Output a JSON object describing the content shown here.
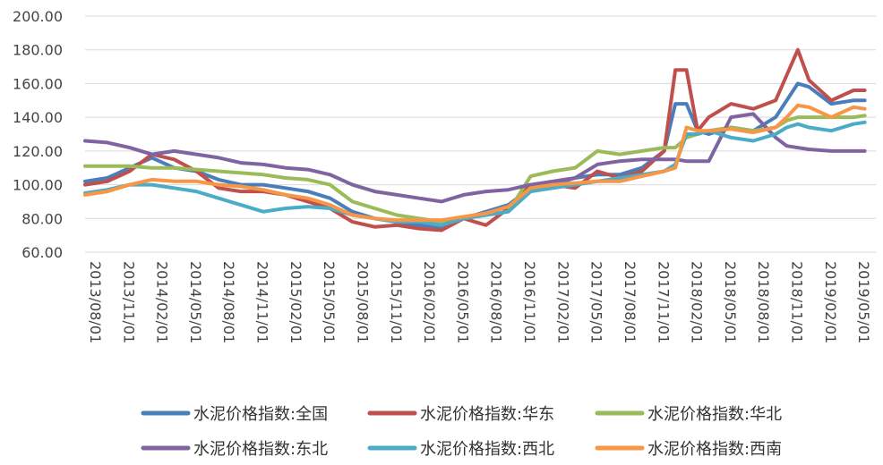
{
  "chart_data": {
    "type": "line",
    "title": "",
    "xlabel": "",
    "ylabel": "",
    "ylim": [
      60,
      200
    ],
    "yticks": [
      "60.00",
      "80.00",
      "100.00",
      "120.00",
      "140.00",
      "160.00",
      "180.00",
      "200.00"
    ],
    "xticks": [
      "2013/08/01",
      "2013/11/01",
      "2014/02/01",
      "2014/05/01",
      "2014/08/01",
      "2014/11/01",
      "2015/02/01",
      "2015/05/01",
      "2015/08/01",
      "2015/11/01",
      "2016/02/01",
      "2016/05/01",
      "2016/08/01",
      "2016/11/01",
      "2017/02/01",
      "2017/05/01",
      "2017/08/01",
      "2017/11/01",
      "2018/02/01",
      "2018/05/01",
      "2018/08/01",
      "2018/11/01",
      "2019/02/01",
      "2019/05/01"
    ],
    "grid": true,
    "legend_position": "bottom",
    "x": [
      "2013/08",
      "2013/10",
      "2013/12",
      "2014/02",
      "2014/04",
      "2014/06",
      "2014/08",
      "2014/10",
      "2014/12",
      "2015/02",
      "2015/04",
      "2015/06",
      "2015/08",
      "2015/10",
      "2015/12",
      "2016/02",
      "2016/04",
      "2016/06",
      "2016/08",
      "2016/10",
      "2016/12",
      "2017/02",
      "2017/04",
      "2017/06",
      "2017/08",
      "2017/10",
      "2017/12",
      "2018/01",
      "2018/02",
      "2018/03",
      "2018/04",
      "2018/06",
      "2018/08",
      "2018/10",
      "2018/11",
      "2018/12",
      "2019/01",
      "2019/03",
      "2019/05",
      "2019/06"
    ],
    "series": [
      {
        "name": "水泥价格指数:全国",
        "color": "#4a7ebb",
        "values": [
          102,
          104,
          110,
          116,
          110,
          108,
          103,
          100,
          100,
          98,
          96,
          92,
          84,
          80,
          78,
          76,
          75,
          80,
          84,
          88,
          98,
          100,
          104,
          106,
          106,
          110,
          120,
          148,
          148,
          132,
          130,
          134,
          132,
          140,
          150,
          160,
          158,
          148,
          150,
          150
        ]
      },
      {
        "name": "水泥价格指数:华东",
        "color": "#c0504d",
        "values": [
          100,
          102,
          108,
          118,
          115,
          108,
          98,
          96,
          96,
          94,
          90,
          86,
          78,
          75,
          76,
          74,
          73,
          80,
          76,
          86,
          100,
          100,
          98,
          108,
          104,
          108,
          120,
          168,
          168,
          132,
          140,
          148,
          145,
          150,
          165,
          180,
          162,
          150,
          156,
          156
        ]
      },
      {
        "name": "水泥价格指数:华北",
        "color": "#9bbb59",
        "values": [
          111,
          111,
          111,
          110,
          110,
          109,
          108,
          107,
          106,
          104,
          103,
          100,
          90,
          86,
          82,
          80,
          78,
          80,
          82,
          84,
          105,
          108,
          110,
          120,
          118,
          120,
          122,
          122,
          128,
          130,
          132,
          134,
          132,
          134,
          138,
          140,
          140,
          140,
          140,
          141
        ]
      },
      {
        "name": "水泥价格指数:东北",
        "color": "#8064a2",
        "values": [
          126,
          125,
          122,
          118,
          120,
          118,
          116,
          113,
          112,
          110,
          109,
          106,
          100,
          96,
          94,
          92,
          90,
          94,
          96,
          97,
          100,
          102,
          104,
          112,
          114,
          115,
          115,
          115,
          114,
          114,
          114,
          140,
          142,
          128,
          123,
          122,
          121,
          120,
          120,
          120
        ]
      },
      {
        "name": "水泥价格指数:西北",
        "color": "#4bacc6",
        "values": [
          95,
          97,
          100,
          100,
          98,
          96,
          92,
          88,
          84,
          86,
          87,
          86,
          82,
          80,
          78,
          78,
          76,
          80,
          82,
          84,
          96,
          98,
          100,
          102,
          104,
          106,
          108,
          112,
          130,
          130,
          132,
          128,
          126,
          130,
          134,
          136,
          134,
          132,
          136,
          137
        ]
      },
      {
        "name": "水泥价格指数:西南",
        "color": "#f79646",
        "values": [
          94,
          96,
          100,
          103,
          102,
          102,
          100,
          99,
          97,
          94,
          92,
          88,
          82,
          80,
          79,
          79,
          79,
          81,
          83,
          87,
          98,
          100,
          101,
          102,
          102,
          105,
          108,
          110,
          134,
          132,
          132,
          133,
          131,
          134,
          140,
          147,
          146,
          140,
          146,
          145
        ]
      }
    ]
  }
}
